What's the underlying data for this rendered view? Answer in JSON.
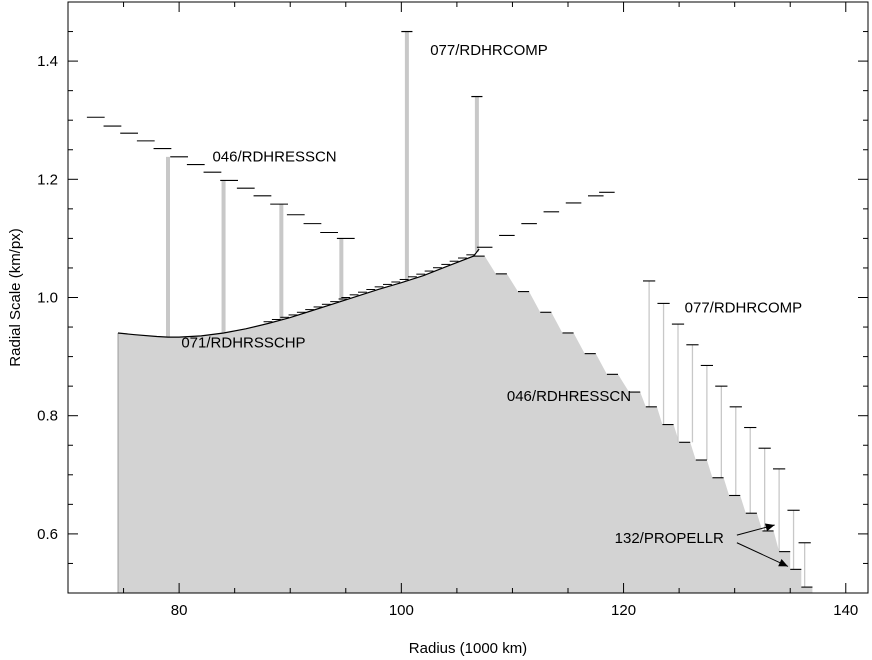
{
  "chart_data": {
    "type": "line",
    "title": "",
    "xlabel": "Radius (1000 km)",
    "ylabel": "Radial Scale (km/px)",
    "xlim": [
      70,
      142
    ],
    "ylim": [
      0.5,
      1.5
    ],
    "xticks": [
      80,
      100,
      120,
      140
    ],
    "yticks": [
      0.6,
      0.8,
      1.0,
      1.2,
      1.4
    ],
    "grid": false,
    "colors": {
      "fill": "#d3d3d3",
      "line": "#000000",
      "connector": "#c8c8c8"
    },
    "series": [
      {
        "name": "071/RDHRSSCHP",
        "x": [
          74.5,
          76,
          78,
          79,
          80,
          82,
          84,
          86,
          88,
          90,
          92,
          94,
          96,
          98,
          100,
          102,
          104,
          106.5,
          107
        ],
        "y_min": [
          0.94,
          0.937,
          0.934,
          0.933,
          0.933,
          0.935,
          0.94,
          0.947,
          0.956,
          0.966,
          0.978,
          0.99,
          1.002,
          1.014,
          1.025,
          1.037,
          1.052,
          1.07,
          1.082
        ]
      },
      {
        "name": "046/RDHRESSCN",
        "x": [
          72.5,
          74,
          75.5,
          77,
          78.5,
          80,
          81.5,
          83,
          84.5,
          86,
          87.5,
          89,
          90.5,
          92,
          93.5,
          95
        ],
        "y": [
          1.305,
          1.29,
          1.278,
          1.265,
          1.252,
          1.238,
          1.225,
          1.212,
          1.198,
          1.185,
          1.172,
          1.158,
          1.14,
          1.125,
          1.11,
          1.1
        ]
      },
      {
        "name": "077/RDHRCOMP",
        "x": [
          100.5,
          106.8
        ],
        "y": [
          1.45,
          1.34
        ]
      },
      {
        "name": "046/RDHRESSCN",
        "x": [
          107,
          109,
          111,
          113,
          115,
          117,
          119,
          121,
          122.5,
          124,
          125.5,
          127,
          128.5,
          130,
          131.5,
          133,
          134.5,
          135.5,
          136.5
        ],
        "y": [
          1.07,
          1.04,
          1.01,
          0.975,
          0.94,
          0.905,
          0.87,
          0.84,
          0.815,
          0.785,
          0.755,
          0.725,
          0.695,
          0.665,
          0.635,
          0.605,
          0.57,
          0.54,
          0.51
        ]
      },
      {
        "name": "077/RDHRCOMP",
        "x": [
          107.5,
          109.5,
          111.5,
          113.5,
          115.5,
          117.5,
          118.5
        ],
        "y": [
          1.085,
          1.105,
          1.125,
          1.145,
          1.16,
          1.172,
          1.178
        ]
      },
      {
        "name": "077/RDHRCOMP",
        "x": [
          122.3,
          123.6,
          124.9,
          126.2,
          127.5,
          128.8,
          130.1,
          131.4,
          132.7,
          134,
          135.3,
          136.3
        ],
        "y": [
          1.028,
          0.99,
          0.955,
          0.92,
          0.885,
          0.85,
          0.815,
          0.78,
          0.745,
          0.71,
          0.64,
          0.585
        ]
      }
    ],
    "annotations": [
      {
        "text": "077/RDHRCOMP",
        "x": 102.6,
        "y": 1.41
      },
      {
        "text": "046/RDHRESSCN",
        "x": 83.0,
        "y": 1.23
      },
      {
        "text": "071/RDHRSSCHP",
        "x": 80.2,
        "y": 0.915
      },
      {
        "text": "077/RDHRCOMP",
        "x": 125.5,
        "y": 0.975
      },
      {
        "text": "046/RDHRESSCN",
        "x": 109.5,
        "y": 0.825
      },
      {
        "text": "132/PROPELLR",
        "x": 119.2,
        "y": 0.585
      }
    ],
    "arrows": [
      {
        "from": [
          130.2,
          0.598
        ],
        "to": [
          133.6,
          0.615
        ]
      },
      {
        "from": [
          130.2,
          0.585
        ],
        "to": [
          134.8,
          0.545
        ]
      }
    ]
  }
}
